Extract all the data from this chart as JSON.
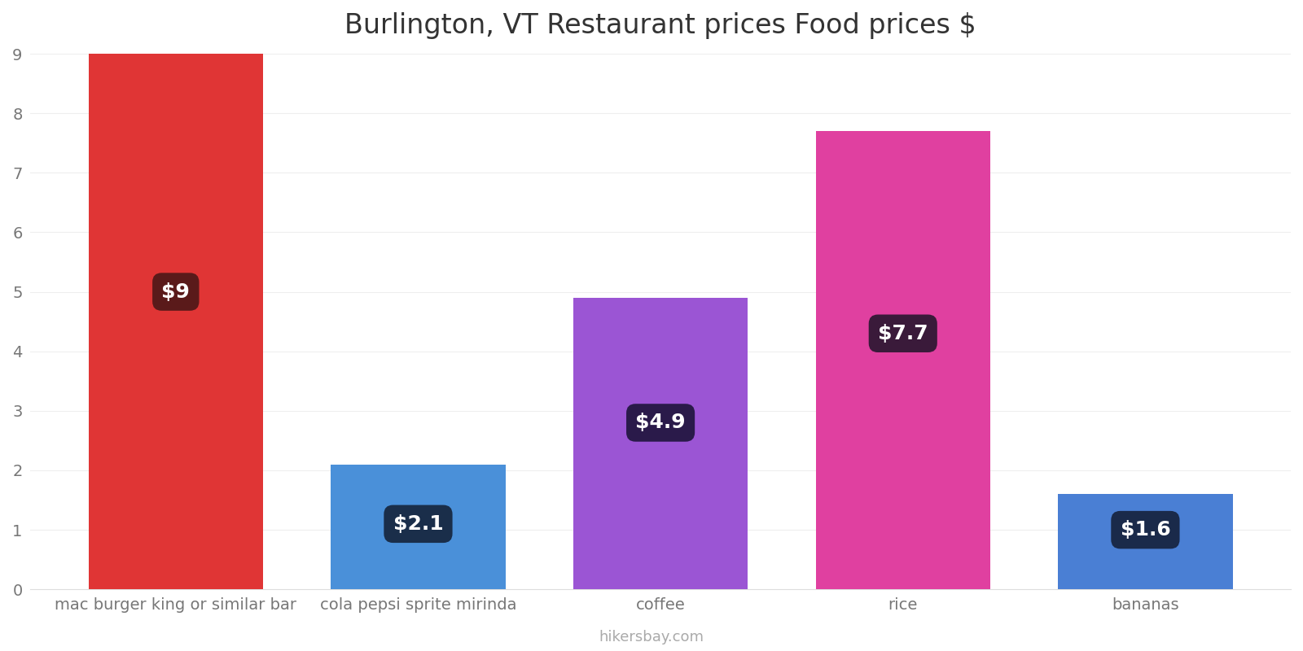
{
  "title": "Burlington, VT Restaurant prices Food prices $",
  "categories": [
    "mac burger king or similar bar",
    "cola pepsi sprite mirinda",
    "coffee",
    "rice",
    "bananas"
  ],
  "values": [
    9.0,
    2.1,
    4.9,
    7.7,
    1.6
  ],
  "bar_colors": [
    "#e03535",
    "#4a90d9",
    "#9b55d4",
    "#e040a0",
    "#4a7fd4"
  ],
  "label_texts": [
    "$9",
    "$2.1",
    "$4.9",
    "$7.7",
    "$1.6"
  ],
  "label_box_colors": [
    "#5a1a1a",
    "#1a2e4a",
    "#2a1a4a",
    "#3a1a3a",
    "#1a2a4a"
  ],
  "label_y_positions": [
    5.0,
    1.1,
    2.8,
    4.3,
    1.0
  ],
  "ylim": [
    0,
    9
  ],
  "yticks": [
    0,
    1,
    2,
    3,
    4,
    5,
    6,
    7,
    8,
    9
  ],
  "footer_text": "hikersbay.com",
  "title_fontsize": 24,
  "tick_fontsize": 14,
  "label_fontsize": 18,
  "footer_fontsize": 13,
  "background_color": "#ffffff",
  "grid_color": "#eeeeee"
}
